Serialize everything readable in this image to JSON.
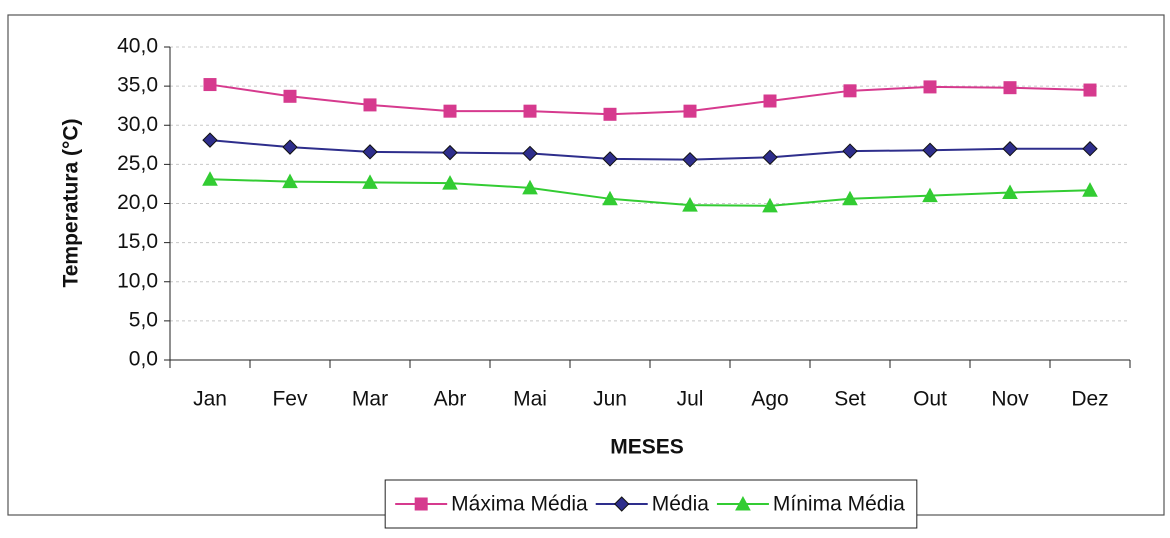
{
  "chart_data": {
    "type": "line",
    "x_label": "MESES",
    "y_label": "Temperatura (°C)",
    "categories": [
      "Jan",
      "Fev",
      "Mar",
      "Abr",
      "Mai",
      "Jun",
      "Jul",
      "Ago",
      "Set",
      "Out",
      "Nov",
      "Dez"
    ],
    "series": [
      {
        "name": "Máxima Média",
        "color": "#d63a8e",
        "marker": "square",
        "values": [
          35.2,
          33.7,
          32.6,
          31.8,
          31.8,
          31.4,
          31.8,
          33.1,
          34.4,
          34.9,
          34.8,
          34.5
        ]
      },
      {
        "name": "Média",
        "color": "#2e2e8c",
        "marker": "diamond",
        "values": [
          28.1,
          27.2,
          26.6,
          26.5,
          26.4,
          25.7,
          25.6,
          25.9,
          26.7,
          26.8,
          27.0,
          27.0
        ]
      },
      {
        "name": "Mínima Média",
        "color": "#33cc33",
        "marker": "triangle",
        "values": [
          23.1,
          22.8,
          22.7,
          22.6,
          22.0,
          20.6,
          19.8,
          19.7,
          20.6,
          21.0,
          21.4,
          21.7
        ]
      }
    ],
    "ylim": [
      0,
      40
    ],
    "yticks": [
      {
        "value": 0,
        "label": "0,0"
      },
      {
        "value": 5,
        "label": "5,0"
      },
      {
        "value": 10,
        "label": "10,0"
      },
      {
        "value": 15,
        "label": "15,0"
      },
      {
        "value": 20,
        "label": "20,0"
      },
      {
        "value": 25,
        "label": "25,0"
      },
      {
        "value": 30,
        "label": "30,0"
      },
      {
        "value": 35,
        "label": "35,0"
      },
      {
        "value": 40,
        "label": "40,0"
      }
    ],
    "grid": true,
    "legend": "bottom"
  }
}
